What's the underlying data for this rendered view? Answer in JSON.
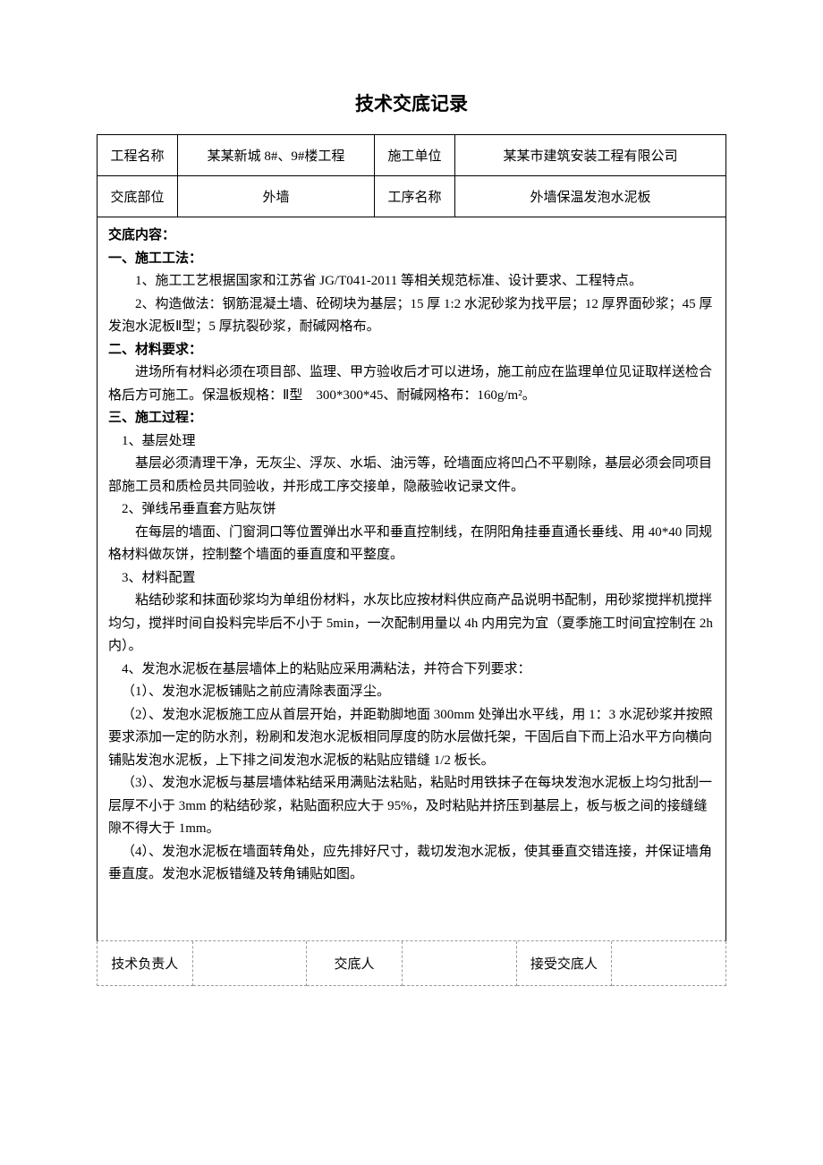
{
  "title": "技术交底记录",
  "header": {
    "row1": {
      "label1": "工程名称",
      "value1": "某某新城 8#、9#楼工程",
      "label2": "施工单位",
      "value2": "某某市建筑安装工程有限公司"
    },
    "row2": {
      "label1": "交底部位",
      "value1": "外墙",
      "label2": "工序名称",
      "value2": "外墙保温发泡水泥板"
    }
  },
  "content": {
    "label": "交底内容：",
    "section1": {
      "heading": "一、施工工法：",
      "p1": "1、施工工艺根据国家和江苏省 JG/T041-2011 等相关规范标准、设计要求、工程特点。",
      "p2": "2、构造做法：钢筋混凝土墙、砼砌块为基层；15 厚 1:2 水泥砂浆为找平层；12 厚界面砂浆；45 厚发泡水泥板Ⅱ型；5 厚抗裂砂浆，耐碱网格布。"
    },
    "section2": {
      "heading": "二、材料要求：",
      "p1": "进场所有材料必须在项目部、监理、甲方验收后才可以进场，施工前应在监理单位见证取样送检合格后方可施工。保温板规格：Ⅱ型　300*300*45、耐碱网格布：160g/m²。"
    },
    "section3": {
      "heading": "三、施工过程：",
      "p1_label": "1、基层处理",
      "p1_body": "基层必须清理干净，无灰尘、浮灰、水垢、油污等，砼墙面应将凹凸不平剔除，基层必须会同项目部施工员和质检员共同验收，并形成工序交接单，隐蔽验收记录文件。",
      "p2_label": "2、弹线吊垂直套方贴灰饼",
      "p2_body": "在每层的墙面、门窗洞口等位置弹出水平和垂直控制线，在阴阳角挂垂直通长垂线、用 40*40 同规格材料做灰饼，控制整个墙面的垂直度和平整度。",
      "p3_label": "3、材料配置",
      "p3_body": "粘结砂浆和抹面砂浆均为单组份材料，水灰比应按材料供应商产品说明书配制，用砂浆搅拌机搅拌均匀，搅拌时间自投料完毕后不小于 5min，一次配制用量以 4h 内用完为宜（夏季施工时间宜控制在 2h 内）。",
      "p4_label": "4、发泡水泥板在基层墙体上的粘贴应采用满粘法，并符合下列要求：",
      "p4_1": "（1）、发泡水泥板铺贴之前应清除表面浮尘。",
      "p4_2": "（2）、发泡水泥板施工应从首层开始，并距勒脚地面 300mm 处弹出水平线，用 1：3 水泥砂浆并按照要求添加一定的防水剂，粉刷和发泡水泥板相同厚度的防水层做托架，干固后自下而上沿水平方向横向铺贴发泡水泥板，上下排之间发泡水泥板的粘贴应错缝 1/2 板长。",
      "p4_3": "（3）、发泡水泥板与基层墙体粘结采用满贴法粘贴，粘贴时用铁抹子在每块发泡水泥板上均匀批刮一层厚不小于 3mm 的粘结砂浆，粘贴面积应大于 95%，及时粘贴并挤压到基层上，板与板之间的接缝缝隙不得大于 1mm。",
      "p4_4": "（4）、发泡水泥板在墙面转角处，应先排好尺寸，裁切发泡水泥板，使其垂直交错连接，并保证墙角垂直度。发泡水泥板错缝及转角铺贴如图。"
    }
  },
  "footer": {
    "label1": "技术负责人",
    "value1": "",
    "label2": "交底人",
    "value2": "",
    "label3": "接受交底人",
    "value3": ""
  },
  "colors": {
    "text": "#000000",
    "background": "#ffffff",
    "border": "#000000",
    "dashed_border": "#999999"
  },
  "typography": {
    "title_fontsize": 21,
    "body_fontsize": 15,
    "line_height": 1.7,
    "font_family": "SimSun"
  }
}
